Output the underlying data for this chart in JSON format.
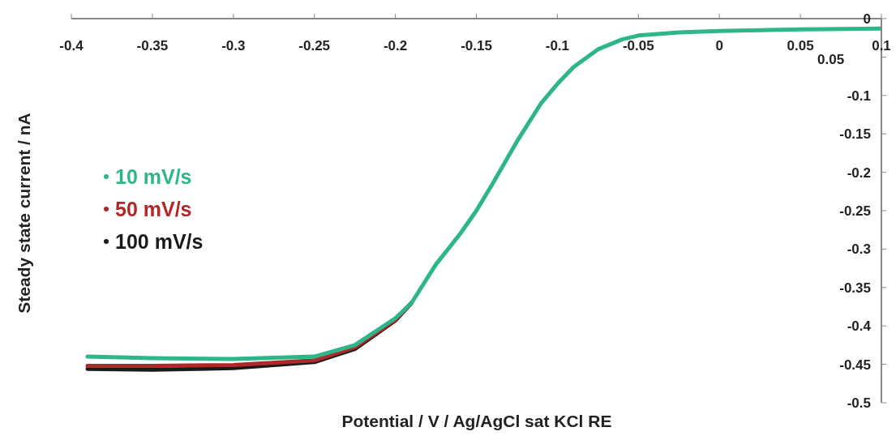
{
  "chart_data": {
    "type": "line",
    "xlabel": "Potential / V / Ag/AgCl sat KCl RE",
    "ylabel": "Steady state current / nA",
    "x": [
      -0.39,
      -0.35,
      -0.3,
      -0.25,
      -0.225,
      -0.2,
      -0.19,
      -0.175,
      -0.16,
      -0.15,
      -0.14,
      -0.125,
      -0.11,
      -0.1,
      -0.09,
      -0.075,
      -0.06,
      -0.05,
      -0.025,
      0,
      0.05,
      0.1
    ],
    "series": [
      {
        "name": "100 mV/s",
        "color": "#1a1a1a",
        "values": [
          -0.456,
          -0.457,
          -0.455,
          -0.447,
          -0.43,
          -0.393,
          -0.37,
          null,
          null,
          null,
          null,
          null,
          null,
          null,
          null,
          null,
          null,
          null,
          null,
          null,
          null,
          null
        ]
      },
      {
        "name": "50 mV/s",
        "color": "#b0282a",
        "values": [
          -0.452,
          -0.452,
          -0.451,
          -0.445,
          -0.428,
          -0.392,
          -0.37,
          null,
          null,
          null,
          null,
          null,
          null,
          null,
          null,
          null,
          null,
          null,
          null,
          null,
          null,
          null
        ]
      },
      {
        "name": "10 mV/s",
        "color": "#2fb58a",
        "values": [
          -0.44,
          -0.442,
          -0.443,
          -0.44,
          -0.425,
          -0.39,
          -0.37,
          -0.32,
          -0.28,
          -0.25,
          -0.215,
          -0.16,
          -0.11,
          -0.085,
          -0.063,
          -0.04,
          -0.027,
          -0.022,
          -0.018,
          -0.016,
          -0.014,
          -0.013
        ]
      }
    ],
    "xlim": [
      -0.4,
      0.1
    ],
    "xticks": [
      -0.4,
      -0.35,
      -0.3,
      -0.25,
      -0.2,
      -0.15,
      -0.1,
      -0.05,
      0,
      0.05,
      0.1
    ],
    "ylim": [
      -0.5,
      0
    ],
    "yticks": [
      0,
      {
        "value": -0.05,
        "label": null
      },
      -0.1,
      -0.15,
      -0.2,
      -0.25,
      -0.3,
      -0.35,
      -0.4,
      -0.45,
      -0.5
    ],
    "annotations": [
      "0.05"
    ],
    "legend": "left",
    "grid": false,
    "marker": "none",
    "line_style": "solid"
  }
}
